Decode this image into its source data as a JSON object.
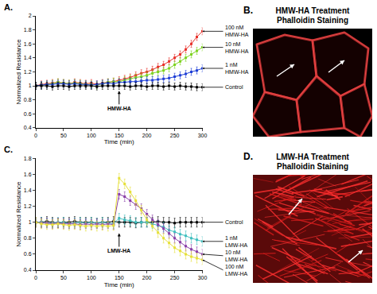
{
  "chart_data": [
    {
      "type": "line",
      "panel_label": "A.",
      "annotations": [
        "HMW-HA"
      ],
      "x_label": "Time (min)",
      "y_label": "Normalized Resistance",
      "x": [
        0,
        10,
        20,
        30,
        40,
        50,
        60,
        70,
        80,
        90,
        100,
        110,
        120,
        130,
        140,
        150,
        160,
        170,
        180,
        190,
        200,
        210,
        220,
        230,
        240,
        250,
        260,
        270,
        280,
        290,
        300
      ],
      "xlim": [
        0,
        300
      ],
      "xticks": [
        0,
        50,
        100,
        150,
        200,
        250,
        300
      ],
      "ylim": [
        0.4,
        2
      ],
      "yticks": [
        0.4,
        0.6,
        0.8,
        1,
        1.2,
        1.4,
        1.6,
        1.8,
        2
      ],
      "grid": false,
      "series": [
        {
          "name": "100 nM HMW-HA",
          "color": "#e8302a",
          "marker": "square",
          "error": 0.05,
          "values": [
            1,
            1.02,
            1.03,
            1.04,
            1.05,
            1.04,
            1.03,
            1.05,
            1.04,
            1.03,
            1.04,
            1.02,
            1.04,
            1.05,
            1.06,
            1.08,
            1.1,
            1.12,
            1.15,
            1.18,
            1.2,
            1.23,
            1.27,
            1.3,
            1.35,
            1.4,
            1.45,
            1.52,
            1.6,
            1.7,
            1.78
          ]
        },
        {
          "name": "10 nM HMW-HA",
          "color": "#7ed321",
          "marker": "square",
          "error": 0.05,
          "values": [
            1,
            1.01,
            1.02,
            1.03,
            1.05,
            1.04,
            1.03,
            1.04,
            1.03,
            1.02,
            1.02,
            1.01,
            1.03,
            1.05,
            1.06,
            1.06,
            1.08,
            1.1,
            1.12,
            1.13,
            1.15,
            1.18,
            1.2,
            1.22,
            1.25,
            1.3,
            1.35,
            1.4,
            1.45,
            1.5,
            1.55
          ]
        },
        {
          "name": "1 nM HMW-HA",
          "color": "#1f3fd6",
          "marker": "square",
          "error": 0.05,
          "values": [
            1,
            1.01,
            1.02,
            1.02,
            1.03,
            1.03,
            1.02,
            1.03,
            1.02,
            1.02,
            1.01,
            1.02,
            1.03,
            1.04,
            1.03,
            1.05,
            1.05,
            1.06,
            1.06,
            1.07,
            1.08,
            1.08,
            1.09,
            1.1,
            1.11,
            1.13,
            1.15,
            1.17,
            1.2,
            1.22,
            1.25
          ]
        },
        {
          "name": "Control",
          "color": "#000000",
          "marker": "square",
          "error": 0.05,
          "values": [
            1,
            1,
            1,
            0.99,
            1,
            1,
            0.99,
            1,
            1,
            1,
            1,
            0.99,
            1,
            1,
            1,
            1,
            1,
            0.99,
            1,
            1,
            0.99,
            1,
            1,
            0.99,
            1,
            0.99,
            1,
            0.99,
            0.99,
            0.98,
            0.98
          ]
        }
      ]
    },
    {
      "type": "line",
      "panel_label": "C.",
      "annotations": [
        "LMW-HA"
      ],
      "x_label": "Time (min)",
      "y_label": "Normalized Resistance",
      "x": [
        0,
        10,
        20,
        30,
        40,
        50,
        60,
        70,
        80,
        90,
        100,
        110,
        120,
        130,
        140,
        150,
        160,
        170,
        180,
        190,
        200,
        210,
        220,
        230,
        240,
        250,
        260,
        270,
        280,
        290,
        300
      ],
      "xlim": [
        0,
        300
      ],
      "xticks": [
        0,
        50,
        100,
        150,
        200,
        250,
        300
      ],
      "ylim": [
        0.4,
        1.8
      ],
      "yticks": [
        0.4,
        0.6,
        0.8,
        1,
        1.2,
        1.4,
        1.6,
        1.8
      ],
      "grid": false,
      "series": [
        {
          "name": "Control",
          "color": "#000000",
          "marker": "square",
          "error": 0.06,
          "values": [
            1,
            1,
            1.01,
            1,
            0.99,
            1,
            1,
            1.01,
            1,
            1,
            1,
            0.99,
            1,
            1,
            1.01,
            1,
            1,
            1,
            0.99,
            1,
            1,
            1,
            1.01,
            1,
            1,
            0.99,
            1,
            1,
            1,
            1,
            1
          ]
        },
        {
          "name": "1 nM LMW-HA",
          "color": "#3fbfbf",
          "marker": "square",
          "error": 0.06,
          "values": [
            1,
            1,
            0.99,
            0.99,
            1,
            1,
            0.98,
            0.99,
            1,
            0.99,
            1,
            0.99,
            1,
            0.99,
            0.98,
            1.05,
            1.03,
            1.02,
            1,
            1,
            1,
            0.98,
            0.96,
            0.94,
            0.9,
            0.88,
            0.85,
            0.83,
            0.8,
            0.78,
            0.76
          ]
        },
        {
          "name": "10 nM LMW-HA",
          "color": "#8a3fa8",
          "marker": "square",
          "error": 0.06,
          "values": [
            1,
            0.99,
            0.99,
            0.98,
            0.99,
            0.98,
            0.98,
            0.98,
            0.97,
            0.98,
            0.97,
            0.98,
            0.97,
            0.98,
            0.97,
            1.35,
            1.32,
            1.27,
            1.22,
            1.17,
            1.1,
            1.03,
            0.97,
            0.92,
            0.86,
            0.8,
            0.75,
            0.7,
            0.66,
            0.63,
            0.6
          ]
        },
        {
          "name": "100 nM LMW-HA",
          "color": "#e6e03a",
          "marker": "square",
          "error": 0.06,
          "values": [
            1,
            0.98,
            0.97,
            0.97,
            0.98,
            0.97,
            0.96,
            0.97,
            0.96,
            0.95,
            0.96,
            0.95,
            0.96,
            0.95,
            0.96,
            1.55,
            1.48,
            1.38,
            1.27,
            1.15,
            1.03,
            0.95,
            0.87,
            0.8,
            0.74,
            0.68,
            0.64,
            0.6,
            0.57,
            0.55,
            0.53
          ]
        }
      ]
    }
  ],
  "images": [
    {
      "label": "B.",
      "title": [
        "HMW-HA Treatment",
        "Phalloidin Staining"
      ]
    },
    {
      "label": "D.",
      "title": [
        "LMW-HA Treatment",
        "Phalloidin Staining"
      ]
    }
  ]
}
